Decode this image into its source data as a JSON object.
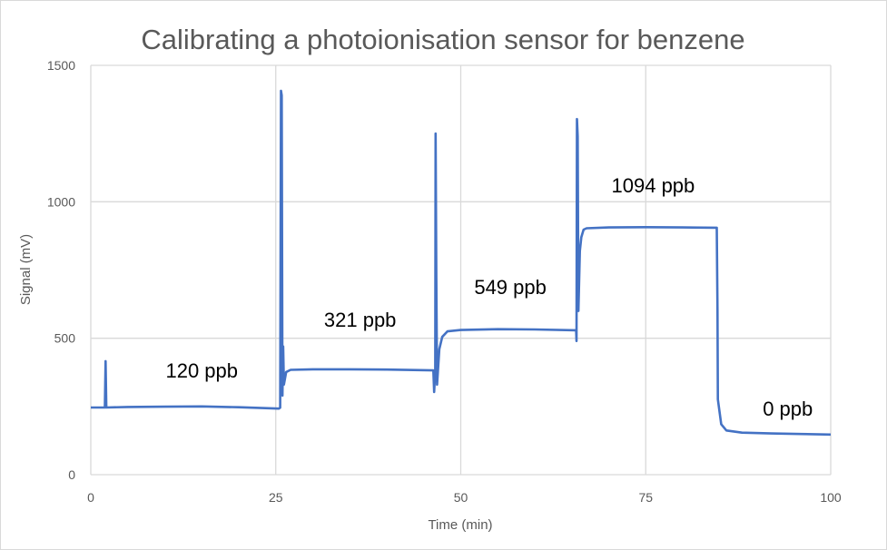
{
  "chart_data": {
    "type": "line",
    "title": "Calibrating a photoionisation sensor for benzene",
    "xlabel": "Time (min)",
    "ylabel": "Signal (mV)",
    "xlim": [
      0,
      100
    ],
    "ylim": [
      0,
      1500
    ],
    "xticks": [
      0,
      25,
      50,
      75,
      100
    ],
    "yticks": [
      0,
      500,
      1000,
      1500
    ],
    "grid": true,
    "legend": "none",
    "line_color": "#4472C4",
    "series": [
      {
        "points": [
          [
            0,
            246
          ],
          [
            1.9,
            246
          ],
          [
            2.0,
            416
          ],
          [
            2.1,
            246
          ],
          [
            5,
            248
          ],
          [
            10,
            249
          ],
          [
            15,
            250
          ],
          [
            20,
            247
          ],
          [
            25.4,
            242
          ],
          [
            25.6,
            245
          ],
          [
            25.7,
            1407
          ],
          [
            25.8,
            1390
          ],
          [
            25.9,
            290
          ],
          [
            26.0,
            470
          ],
          [
            26.1,
            330
          ],
          [
            26.4,
            376
          ],
          [
            27,
            384
          ],
          [
            30,
            386
          ],
          [
            35,
            386
          ],
          [
            40,
            385
          ],
          [
            46.3,
            382
          ],
          [
            46.4,
            303
          ],
          [
            46.55,
            380
          ],
          [
            46.6,
            1250
          ],
          [
            46.7,
            720
          ],
          [
            46.8,
            330
          ],
          [
            47.1,
            460
          ],
          [
            47.5,
            505
          ],
          [
            48.2,
            525
          ],
          [
            50,
            530
          ],
          [
            55,
            533
          ],
          [
            60,
            532
          ],
          [
            65.6,
            529
          ],
          [
            65.65,
            490
          ],
          [
            65.7,
            1303
          ],
          [
            65.8,
            1240
          ],
          [
            65.9,
            600
          ],
          [
            66.1,
            820
          ],
          [
            66.3,
            870
          ],
          [
            66.6,
            898
          ],
          [
            67,
            903
          ],
          [
            70,
            906
          ],
          [
            75,
            907
          ],
          [
            80,
            906
          ],
          [
            84.6,
            905
          ],
          [
            84.7,
            600
          ],
          [
            84.75,
            276
          ],
          [
            85.2,
            185
          ],
          [
            85.9,
            162
          ],
          [
            88,
            154
          ],
          [
            92,
            151
          ],
          [
            96,
            149
          ],
          [
            100,
            147
          ]
        ]
      }
    ],
    "annotations": [
      {
        "text": "120 ppb",
        "x": 15.0,
        "y": 382
      },
      {
        "text": "321 ppb",
        "x": 36.4,
        "y": 569
      },
      {
        "text": "549 ppb",
        "x": 56.7,
        "y": 688
      },
      {
        "text": "1094 ppb",
        "x": 76.0,
        "y": 1061
      },
      {
        "text": "0 ppb",
        "x": 94.2,
        "y": 243
      }
    ]
  }
}
